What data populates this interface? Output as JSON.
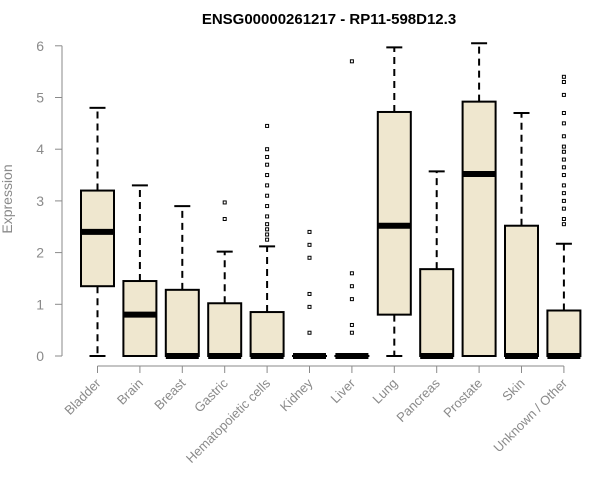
{
  "chart_data": {
    "type": "boxplot",
    "title": "ENSG00000261217 - RP11-598D12.3",
    "xlabel": "",
    "ylabel": "Expression",
    "ylim": [
      0,
      6
    ],
    "yticks": [
      "0",
      "1",
      "2",
      "3",
      "4",
      "5",
      "6"
    ],
    "grid": false,
    "box_color": "#efe7cf",
    "categories": [
      "Bladder",
      "Brain",
      "Breast",
      "Gastric",
      "Hematopoietic cells",
      "Kidney",
      "Liver",
      "Lung",
      "Pancreas",
      "Prostate",
      "Skin",
      "Unknown / Other"
    ],
    "boxes": [
      {
        "whisker_low": 0,
        "q1": 1.35,
        "median": 2.4,
        "q3": 3.2,
        "whisker_high": 4.8,
        "outliers": []
      },
      {
        "whisker_low": 0,
        "q1": 0,
        "median": 0.8,
        "q3": 1.45,
        "whisker_high": 3.3,
        "outliers": []
      },
      {
        "whisker_low": 0,
        "q1": 0,
        "median": 0,
        "q3": 1.28,
        "whisker_high": 2.9,
        "outliers": []
      },
      {
        "whisker_low": 0,
        "q1": 0,
        "median": 0,
        "q3": 1.02,
        "whisker_high": 2.02,
        "outliers": [
          2.65,
          2.97
        ]
      },
      {
        "whisker_low": 0,
        "q1": 0,
        "median": 0,
        "q3": 0.85,
        "whisker_high": 2.12,
        "outliers": [
          2.25,
          2.35,
          2.45,
          2.55,
          2.7,
          2.9,
          3.1,
          3.3,
          3.5,
          3.7,
          3.85,
          4.0,
          4.45
        ]
      },
      {
        "whisker_low": 0,
        "q1": 0,
        "median": 0,
        "q3": 0,
        "whisker_high": 0,
        "outliers": [
          0.45,
          0.95,
          1.2,
          1.9,
          2.15,
          2.4
        ]
      },
      {
        "whisker_low": 0,
        "q1": 0,
        "median": 0,
        "q3": 0,
        "whisker_high": 0,
        "outliers": [
          0.45,
          0.6,
          1.1,
          1.35,
          1.6,
          5.7
        ]
      },
      {
        "whisker_low": 0,
        "q1": 0.8,
        "median": 2.52,
        "q3": 4.72,
        "whisker_high": 5.97,
        "outliers": []
      },
      {
        "whisker_low": 0,
        "q1": 0,
        "median": 0,
        "q3": 1.68,
        "whisker_high": 3.57,
        "outliers": []
      },
      {
        "whisker_low": 0,
        "q1": 0,
        "median": 3.52,
        "q3": 4.92,
        "whisker_high": 6.05,
        "outliers": []
      },
      {
        "whisker_low": 0,
        "q1": 0,
        "median": 0,
        "q3": 2.52,
        "whisker_high": 4.7,
        "outliers": []
      },
      {
        "whisker_low": 0,
        "q1": 0,
        "median": 0,
        "q3": 0.88,
        "whisker_high": 2.17,
        "outliers": [
          2.55,
          2.65,
          2.85,
          3.0,
          3.15,
          3.3,
          3.5,
          3.65,
          3.8,
          3.95,
          4.05,
          4.25,
          4.5,
          4.7,
          5.05,
          5.3,
          5.4
        ]
      }
    ]
  }
}
